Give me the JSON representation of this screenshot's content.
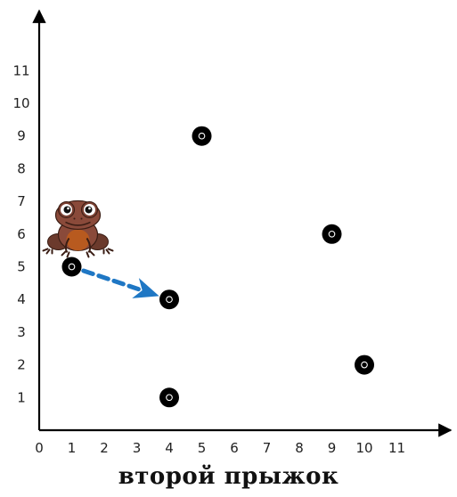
{
  "caption": "второй прыжок",
  "chart_data": {
    "type": "scatter",
    "x_ticks": [
      "0",
      "1",
      "2",
      "3",
      "4",
      "5",
      "6",
      "7",
      "8",
      "9",
      "10",
      "11"
    ],
    "y_ticks": [
      "1",
      "2",
      "3",
      "4",
      "5",
      "6",
      "7",
      "8",
      "9",
      "10",
      "11"
    ],
    "xlim": [
      0,
      12
    ],
    "ylim": [
      0,
      12
    ],
    "points": [
      {
        "x": 1,
        "y": 5
      },
      {
        "x": 4,
        "y": 4
      },
      {
        "x": 4,
        "y": 1
      },
      {
        "x": 5,
        "y": 9
      },
      {
        "x": 9,
        "y": 6
      },
      {
        "x": 10,
        "y": 2
      }
    ],
    "jump": {
      "from": [
        1,
        5
      ],
      "to": [
        4,
        4
      ],
      "color": "#1f77c4"
    },
    "frog": {
      "x": 1,
      "y": 6.5,
      "icon": "frog-icon"
    }
  }
}
